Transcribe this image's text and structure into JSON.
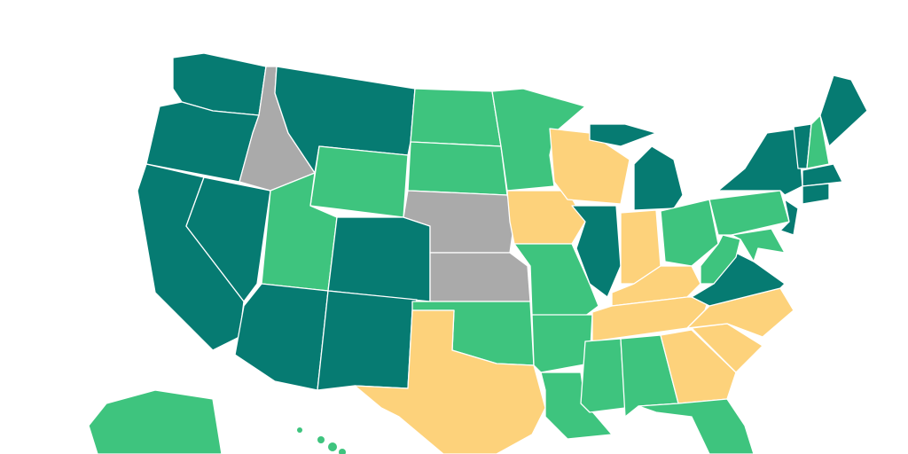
{
  "map": {
    "regions": [
      {
        "color": "#067b72"
      },
      {
        "color": "#067b72"
      },
      {
        "color": "#067b72"
      },
      {
        "color": "#067b72"
      },
      {
        "color": "#aaaaaa"
      },
      {
        "color": "#067b72"
      },
      {
        "color": "#3ec47e"
      },
      {
        "color": "#3ec47e"
      },
      {
        "color": "#067b72"
      },
      {
        "color": "#067b72"
      },
      {
        "color": "#067b72"
      },
      {
        "color": "#3ec47e"
      },
      {
        "color": "#3ec47e"
      },
      {
        "color": "#aaaaaa"
      },
      {
        "color": "#aaaaaa"
      },
      {
        "color": "#3ec47e"
      },
      {
        "color": "#fdd27b"
      },
      {
        "color": "#3ec47e"
      },
      {
        "color": "#fdd27b"
      },
      {
        "color": "#3ec47e"
      },
      {
        "color": "#3ec47e"
      },
      {
        "color": "#3ec47e"
      },
      {
        "color": "#fdd27b"
      },
      {
        "color": "#067b72"
      },
      {
        "color": "#067b72"
      },
      {
        "color": "#fdd27b"
      },
      {
        "color": "#3ec47e"
      },
      {
        "color": "#fdd27b"
      },
      {
        "color": "#fdd27b"
      },
      {
        "color": "#3ec47e"
      },
      {
        "color": "#3ec47e"
      },
      {
        "color": "#fdd27b"
      },
      {
        "color": "#3ec47e"
      },
      {
        "color": "#fdd27b"
      },
      {
        "color": "#fdd27b"
      },
      {
        "color": "#067b72"
      },
      {
        "color": "#3ec47e"
      },
      {
        "color": "#3ec47e"
      },
      {
        "color": "#067b72"
      },
      {
        "color": "#3ec47e"
      },
      {
        "color": "#067b72"
      },
      {
        "color": "#067b72"
      },
      {
        "color": "#3ec47e"
      },
      {
        "color": "#067b72"
      },
      {
        "color": "#067b72"
      },
      {
        "color": "#067b72"
      },
      {
        "color": "#3ec47e"
      }
    ]
  }
}
